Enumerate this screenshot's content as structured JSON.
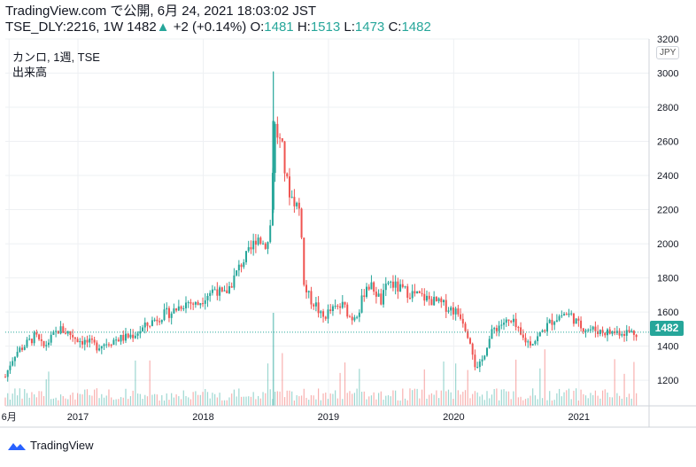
{
  "header": {
    "line1": "TradingView.com で公開, 6月 24, 2021 18:03:02 JST",
    "symbol": "TSE_DLY:2216, 1W",
    "last": "1482",
    "change": "+2 (+0.14%)",
    "o_label": "O:",
    "o_val": "1481",
    "h_label": "H:",
    "h_val": "1513",
    "l_label": "L:",
    "l_val": "1473",
    "c_label": "C:",
    "c_val": "1482"
  },
  "legend": {
    "title": "カンロ, 1週, TSE",
    "volume": "出来高"
  },
  "currency": "JPY",
  "price_tag": "1482",
  "footer": {
    "brand": "TradingView"
  },
  "colors": {
    "up": "#26a69a",
    "down": "#ef5350",
    "grid": "#eef0f3",
    "axis": "#555555"
  },
  "chart_data": {
    "type": "candlestick",
    "y_ticks": [
      1200,
      1400,
      1600,
      1800,
      2000,
      2200,
      2400,
      2600,
      2800,
      3000,
      3200
    ],
    "ylim": [
      1050,
      3200
    ],
    "x_ticks": [
      {
        "label": "6月",
        "x": 2016.45
      },
      {
        "label": "2017",
        "x": 2017.0
      },
      {
        "label": "2018",
        "x": 2018.0
      },
      {
        "label": "2019",
        "x": 2019.0
      },
      {
        "label": "2020",
        "x": 2020.0
      },
      {
        "label": "2021",
        "x": 2021.0
      }
    ],
    "xlim": [
      2016.42,
      2021.56
    ],
    "last_price": 1482,
    "price_path": [
      [
        2016.42,
        1220
      ],
      [
        2016.46,
        1300
      ],
      [
        2016.5,
        1360
      ],
      [
        2016.55,
        1390
      ],
      [
        2016.6,
        1420
      ],
      [
        2016.66,
        1460
      ],
      [
        2016.72,
        1390
      ],
      [
        2016.78,
        1440
      ],
      [
        2016.85,
        1500
      ],
      [
        2016.92,
        1480
      ],
      [
        2017.0,
        1440
      ],
      [
        2017.08,
        1420
      ],
      [
        2017.15,
        1400
      ],
      [
        2017.22,
        1420
      ],
      [
        2017.3,
        1440
      ],
      [
        2017.38,
        1450
      ],
      [
        2017.45,
        1470
      ],
      [
        2017.55,
        1520
      ],
      [
        2017.62,
        1560
      ],
      [
        2017.7,
        1590
      ],
      [
        2017.75,
        1600
      ],
      [
        2017.82,
        1640
      ],
      [
        2017.88,
        1660
      ],
      [
        2017.95,
        1640
      ],
      [
        2018.02,
        1700
      ],
      [
        2018.1,
        1740
      ],
      [
        2018.16,
        1690
      ],
      [
        2018.22,
        1760
      ],
      [
        2018.3,
        1880
      ],
      [
        2018.38,
        1960
      ],
      [
        2018.43,
        2050
      ],
      [
        2018.48,
        2000
      ],
      [
        2018.52,
        2010
      ],
      [
        2018.55,
        2200
      ],
      [
        2018.56,
        2720
      ],
      [
        2018.6,
        2620
      ],
      [
        2018.63,
        2560
      ],
      [
        2018.66,
        2380
      ],
      [
        2018.7,
        2280
      ],
      [
        2018.74,
        2240
      ],
      [
        2018.78,
        2180
      ],
      [
        2018.8,
        1760
      ],
      [
        2018.85,
        1680
      ],
      [
        2018.9,
        1640
      ],
      [
        2018.95,
        1560
      ],
      [
        2019.0,
        1600
      ],
      [
        2019.06,
        1620
      ],
      [
        2019.12,
        1640
      ],
      [
        2019.18,
        1560
      ],
      [
        2019.25,
        1620
      ],
      [
        2019.3,
        1760
      ],
      [
        2019.36,
        1740
      ],
      [
        2019.42,
        1660
      ],
      [
        2019.48,
        1780
      ],
      [
        2019.55,
        1740
      ],
      [
        2019.62,
        1720
      ],
      [
        2019.7,
        1700
      ],
      [
        2019.78,
        1680
      ],
      [
        2019.85,
        1660
      ],
      [
        2019.92,
        1640
      ],
      [
        2020.0,
        1610
      ],
      [
        2020.06,
        1580
      ],
      [
        2020.1,
        1500
      ],
      [
        2020.14,
        1420
      ],
      [
        2020.18,
        1250
      ],
      [
        2020.22,
        1300
      ],
      [
        2020.26,
        1400
      ],
      [
        2020.32,
        1500
      ],
      [
        2020.4,
        1540
      ],
      [
        2020.48,
        1530
      ],
      [
        2020.54,
        1450
      ],
      [
        2020.6,
        1420
      ],
      [
        2020.66,
        1440
      ],
      [
        2020.72,
        1500
      ],
      [
        2020.8,
        1560
      ],
      [
        2020.88,
        1590
      ],
      [
        2020.94,
        1580
      ],
      [
        2021.0,
        1520
      ],
      [
        2021.08,
        1500
      ],
      [
        2021.16,
        1490
      ],
      [
        2021.24,
        1480
      ],
      [
        2021.32,
        1485
      ],
      [
        2021.4,
        1482
      ],
      [
        2021.47,
        1482
      ]
    ],
    "spike": {
      "x": 2018.56,
      "high": 3010,
      "low": 2180
    }
  }
}
